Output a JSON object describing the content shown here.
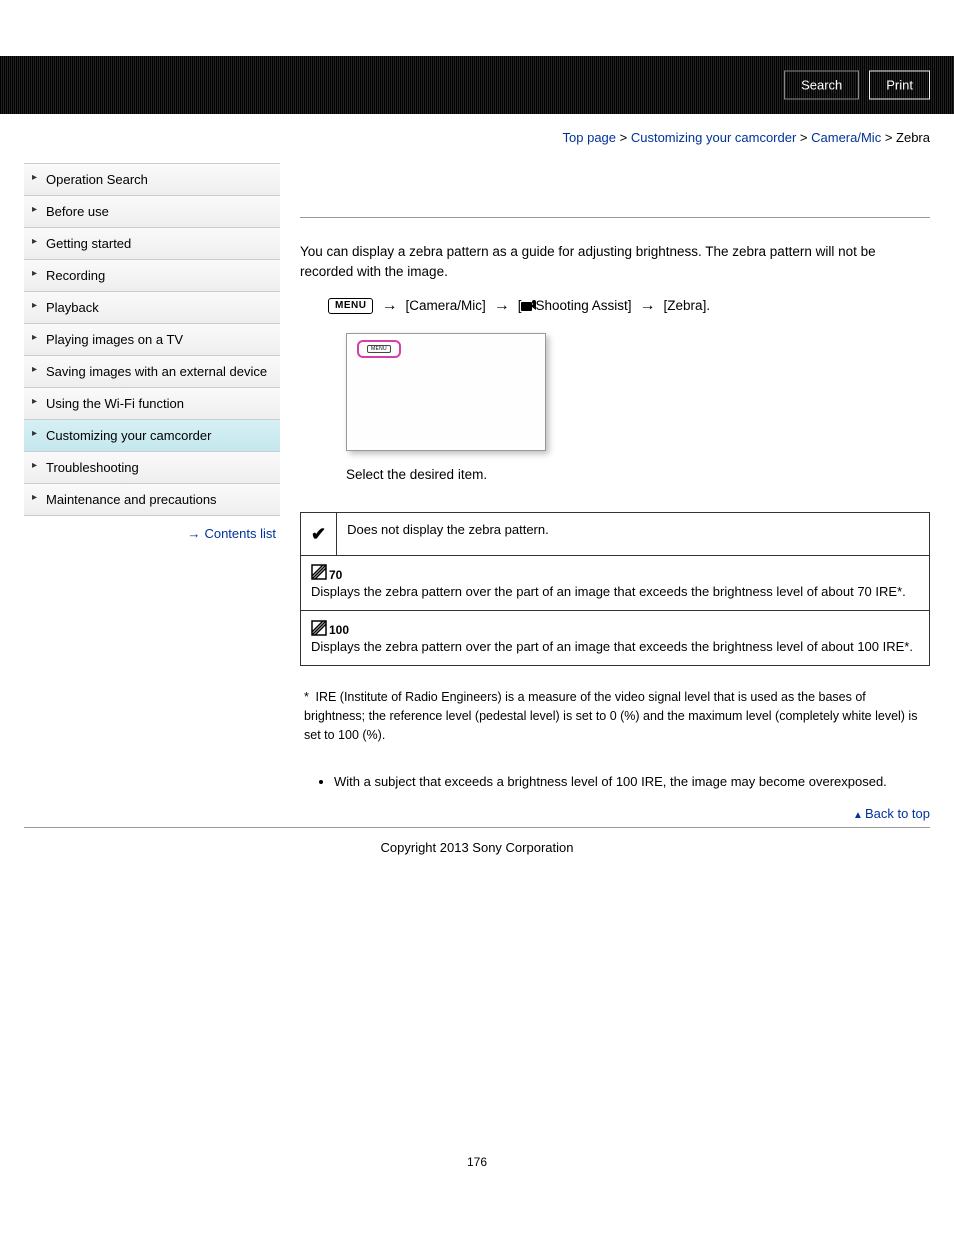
{
  "header": {
    "search_label": "Search",
    "print_label": "Print"
  },
  "breadcrumb": {
    "items": [
      "Top page",
      "Customizing your camcorder",
      "Camera/Mic"
    ],
    "current": "Zebra",
    "sep": " > "
  },
  "sidebar": {
    "items": [
      {
        "label": "Operation Search",
        "active": false
      },
      {
        "label": "Before use",
        "active": false
      },
      {
        "label": "Getting started",
        "active": false
      },
      {
        "label": "Recording",
        "active": false
      },
      {
        "label": "Playback",
        "active": false
      },
      {
        "label": "Playing images on a TV",
        "active": false
      },
      {
        "label": "Saving images with an external device",
        "active": false
      },
      {
        "label": "Using the Wi-Fi function",
        "active": false
      },
      {
        "label": "Customizing your camcorder",
        "active": true
      },
      {
        "label": "Troubleshooting",
        "active": false
      },
      {
        "label": "Maintenance and precautions",
        "active": false
      }
    ],
    "contents_list_label": "Contents list"
  },
  "main": {
    "intro": "You can display a zebra pattern as a guide for adjusting brightness. The zebra pattern will not be recorded with the image.",
    "menu_badge": "MENU",
    "path_step1": "[Camera/Mic]",
    "path_step2_prefix": "[",
    "path_step2_text": "Shooting Assist]",
    "path_step3": "[Zebra].",
    "select_text": "Select the desired item.",
    "options": [
      {
        "checked": true,
        "icon": null,
        "sub": "",
        "desc": "Does not display the zebra pattern."
      },
      {
        "checked": false,
        "icon": "zebra",
        "sub": "70",
        "desc": "Displays the zebra pattern over the part of an image that exceeds the brightness level of about 70 IRE*."
      },
      {
        "checked": false,
        "icon": "zebra",
        "sub": "100",
        "desc": "Displays the zebra pattern over the part of an image that exceeds the brightness level of about 100 IRE*."
      }
    ],
    "footnote_marker": "*",
    "footnote": "IRE (Institute of Radio Engineers) is a measure of the video signal level that is used as the bases of brightness; the reference level (pedestal level) is set to 0 (%) and the maximum level (completely white level) is set to 100 (%).",
    "note_item": "With a subject that exceeds a brightness level of 100 IRE, the image may become overexposed.",
    "back_to_top": "Back to top"
  },
  "footer": {
    "copyright": "Copyright 2013 Sony Corporation",
    "page_number": "176"
  },
  "colors": {
    "link": "#003399",
    "sidebar_active_bg_top": "#d6f0f4",
    "sidebar_active_bg_bottom": "#c4e8ee",
    "highlight_border": "#d63fa8"
  }
}
